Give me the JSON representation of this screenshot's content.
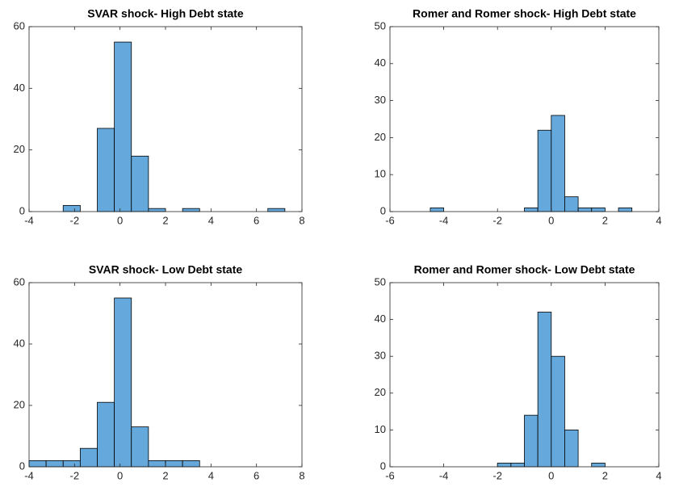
{
  "chart_data": [
    {
      "type": "histogram",
      "title": "SVAR shock- High Debt state",
      "color": "#65a9dc",
      "bins": [
        -4,
        -3.25,
        -2.5,
        -1.75,
        -1,
        -0.25,
        0.5,
        1.25,
        2,
        2.75,
        3.5,
        4.25,
        5,
        5.75,
        6.5,
        7.25,
        8
      ],
      "values": [
        0,
        0,
        2,
        0,
        27,
        55,
        18,
        1,
        0,
        1,
        0,
        0,
        0,
        0,
        1,
        0
      ],
      "xlim": [
        -4,
        8
      ],
      "xticks": [
        -4,
        -2,
        0,
        2,
        4,
        6,
        8
      ],
      "ylim": [
        0,
        60
      ],
      "yticks": [
        0,
        20,
        40,
        60
      ],
      "grid": false
    },
    {
      "type": "histogram",
      "title": "Romer and Romer shock- High Debt state",
      "color": "#65a9dc",
      "bins": [
        -5,
        -4.5,
        -4,
        -3.5,
        -3,
        -2.5,
        -2,
        -1.5,
        -1,
        -0.5,
        0,
        0.5,
        1,
        1.5,
        2,
        2.5,
        3
      ],
      "values": [
        0,
        1,
        0,
        0,
        0,
        0,
        0,
        0,
        1,
        22,
        26,
        4,
        1,
        1,
        0,
        1
      ],
      "xlim": [
        -6,
        4
      ],
      "xticks": [
        -6,
        -4,
        -2,
        0,
        2,
        4
      ],
      "ylim": [
        0,
        50
      ],
      "yticks": [
        0,
        10,
        20,
        30,
        40,
        50
      ],
      "grid": false
    },
    {
      "type": "histogram",
      "title": "SVAR shock- Low Debt state",
      "color": "#65a9dc",
      "bins": [
        -4,
        -3.25,
        -2.5,
        -1.75,
        -1,
        -0.25,
        0.5,
        1.25,
        2,
        2.75,
        3.5,
        4.25,
        5,
        5.75,
        6.5,
        7.25,
        8
      ],
      "values": [
        2,
        2,
        2,
        6,
        21,
        55,
        13,
        2,
        2,
        2,
        0,
        0,
        0,
        0,
        0,
        0
      ],
      "xlim": [
        -4,
        8
      ],
      "xticks": [
        -4,
        -2,
        0,
        2,
        4,
        6,
        8
      ],
      "ylim": [
        0,
        60
      ],
      "yticks": [
        0,
        20,
        40,
        60
      ],
      "grid": false
    },
    {
      "type": "histogram",
      "title": "Romer and Romer shock- Low Debt state",
      "color": "#65a9dc",
      "bins": [
        -5,
        -4.5,
        -4,
        -3.5,
        -3,
        -2.5,
        -2,
        -1.5,
        -1,
        -0.5,
        0,
        0.5,
        1,
        1.5,
        2,
        2.5,
        3
      ],
      "values": [
        0,
        0,
        0,
        0,
        0,
        0,
        1,
        1,
        14,
        42,
        30,
        10,
        0,
        1,
        0,
        0
      ],
      "xlim": [
        -6,
        4
      ],
      "xticks": [
        -6,
        -4,
        -2,
        0,
        2,
        4
      ],
      "ylim": [
        0,
        50
      ],
      "yticks": [
        0,
        10,
        20,
        30,
        40,
        50
      ],
      "grid": false
    }
  ]
}
